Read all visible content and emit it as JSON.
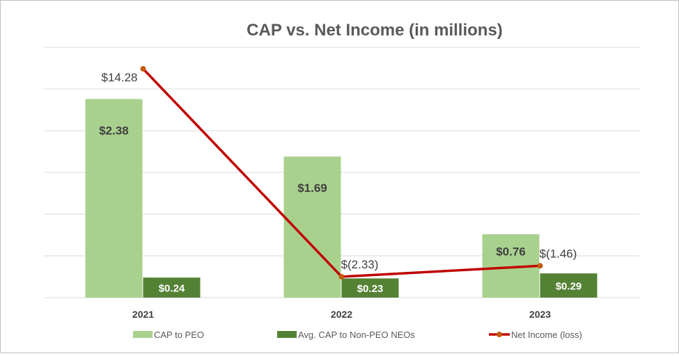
{
  "chart_data": {
    "type": "bar+line",
    "title": "CAP vs. Net Income (in millions)",
    "categories": [
      "2021",
      "2022",
      "2023"
    ],
    "series": [
      {
        "name": "CAP to PEO",
        "type": "bar",
        "axis": "primary",
        "color": "#a9d18e",
        "values": [
          2.38,
          1.69,
          0.76
        ],
        "labels": [
          "$2.38",
          "$1.69",
          "$0.76"
        ]
      },
      {
        "name": "Avg. CAP to Non-PEO NEOs",
        "type": "bar",
        "axis": "primary",
        "color": "#548235",
        "values": [
          0.24,
          0.23,
          0.29
        ],
        "labels": [
          "$0.24",
          "$0.23",
          "$0.29"
        ]
      },
      {
        "name": "Net Income (loss)",
        "type": "line",
        "axis": "secondary",
        "color": "#c00000",
        "marker_color": "#c55a11",
        "values": [
          14.28,
          -2.33,
          -1.46
        ],
        "labels": [
          "$14.28",
          "$(2.33)",
          "$(1.46)"
        ]
      }
    ],
    "ylim": [
      0,
      3.0
    ],
    "grid": true,
    "legend": "bottom"
  }
}
